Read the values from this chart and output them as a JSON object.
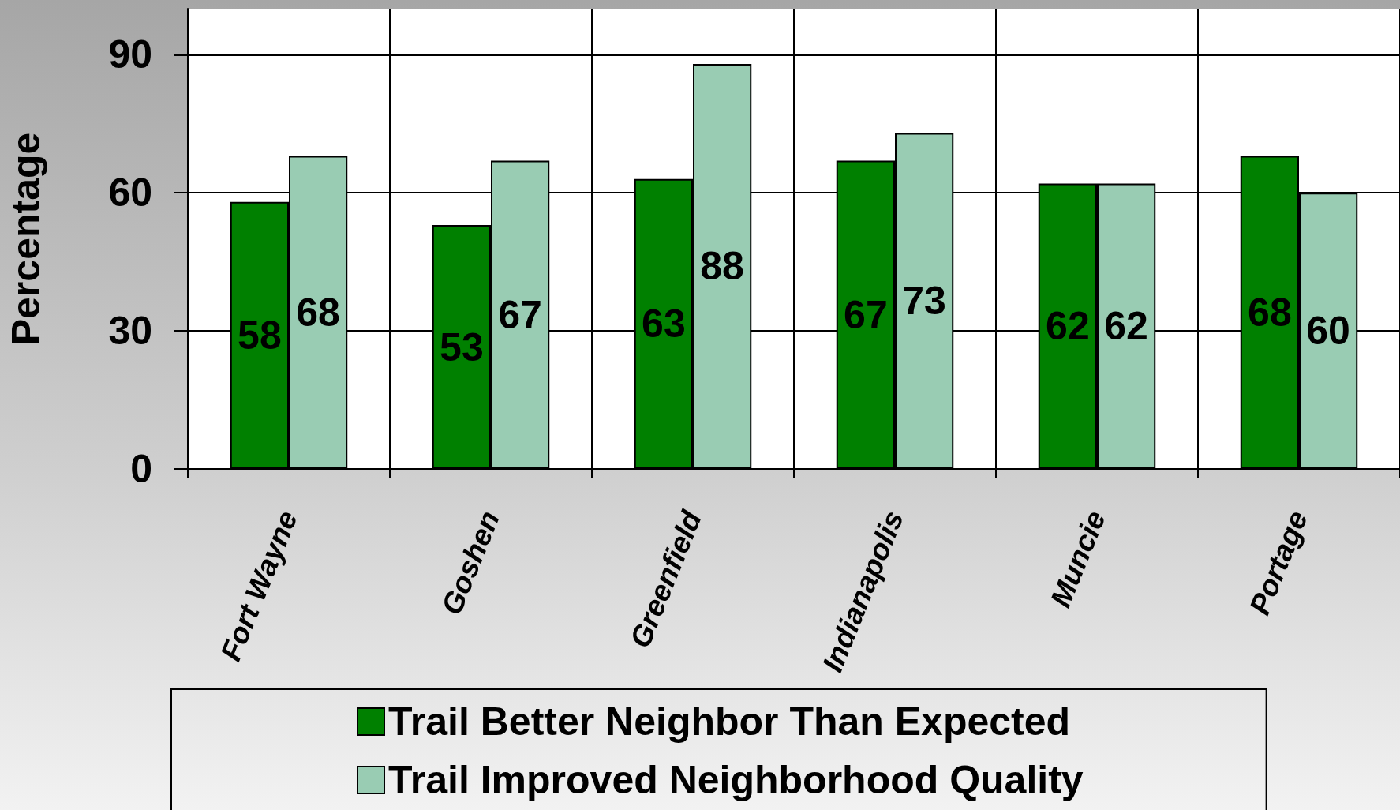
{
  "chart_data": {
    "type": "bar",
    "ylabel": "Percentage",
    "categories": [
      "Fort Wayne",
      "Goshen",
      "Greenfield",
      "Indianapolis",
      "Muncie",
      "Portage"
    ],
    "series": [
      {
        "name": "Trail Better Neighbor Than Expected",
        "color": "#008000",
        "values": [
          58,
          53,
          63,
          67,
          62,
          68
        ]
      },
      {
        "name": "Trail Improved Neighborhood Quality",
        "color": "#99ccb3",
        "values": [
          68,
          67,
          88,
          73,
          62,
          60
        ]
      }
    ],
    "ylim": [
      0,
      100
    ],
    "yticks": [
      0,
      30,
      60,
      90
    ],
    "grid": true,
    "legend": "bottom",
    "data_labels": true
  }
}
